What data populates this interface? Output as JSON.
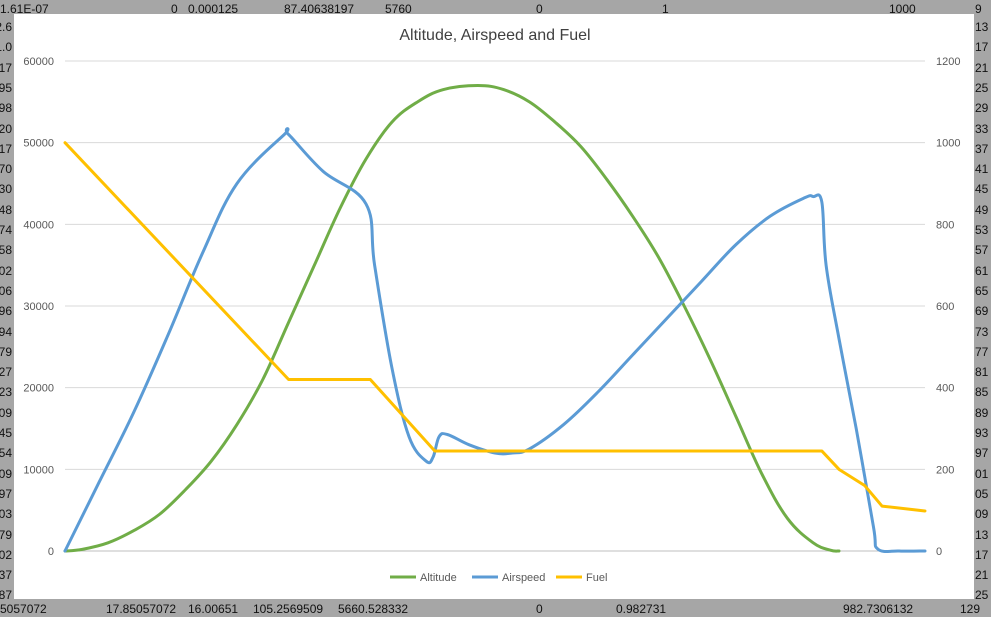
{
  "sheet": {
    "top_row": [
      "1.61E-07",
      "0",
      "0.000125",
      "87.40638197",
      "5760",
      "0",
      "1",
      "1000",
      "9"
    ],
    "bottom_row": [
      "5057072",
      "17.85057072",
      "16.00651",
      "105.2569509",
      "5660.528332",
      "0",
      "0.982731",
      "982.7306132",
      "129"
    ],
    "left_column_fragments": [
      "2.6",
      "1.0",
      "17",
      "95",
      "98",
      "20",
      "17",
      "70",
      "30",
      "48",
      "74",
      "58",
      "02",
      "06",
      "96",
      "94",
      "79",
      "27",
      "23",
      "09",
      "45",
      "54",
      "09",
      "97",
      "03",
      "79",
      "02",
      "37",
      "87"
    ],
    "right_column_fragments": [
      "13",
      "17",
      "21",
      "25",
      "29",
      "33",
      "37",
      "41",
      "45",
      "49",
      "53",
      "57",
      "61",
      "65",
      "69",
      "73",
      "77",
      "81",
      "85",
      "89",
      "93",
      "97",
      "01",
      "05",
      "09",
      "13",
      "17",
      "21",
      "25"
    ]
  },
  "chart_data": {
    "type": "line",
    "title": "Altitude, Airspeed and Fuel",
    "xlabel": "",
    "ylabel": "",
    "y_left": {
      "min": 0,
      "max": 60000,
      "ticks": [
        "0",
        "10000",
        "20000",
        "30000",
        "40000",
        "50000",
        "60000"
      ]
    },
    "y_right": {
      "min": 0,
      "max": 1200,
      "ticks": [
        "0",
        "200",
        "400",
        "600",
        "800",
        "1000",
        "1200"
      ]
    },
    "x": {
      "min": 0,
      "max": 100
    },
    "grid": true,
    "legend_position": "bottom",
    "series": [
      {
        "name": "Altitude",
        "axis": "left",
        "color": "#70ad47",
        "points": [
          [
            0,
            0
          ],
          [
            2,
            200
          ],
          [
            5,
            1000
          ],
          [
            8,
            2500
          ],
          [
            11,
            4500
          ],
          [
            14,
            7500
          ],
          [
            17,
            11000
          ],
          [
            20,
            15500
          ],
          [
            23,
            21000
          ],
          [
            26,
            28000
          ],
          [
            29,
            35000
          ],
          [
            32,
            42000
          ],
          [
            35,
            48000
          ],
          [
            38,
            52500
          ],
          [
            41,
            55000
          ],
          [
            44,
            56500
          ],
          [
            48,
            57000
          ],
          [
            51,
            56500
          ],
          [
            54,
            55000
          ],
          [
            57,
            52500
          ],
          [
            60,
            49500
          ],
          [
            63,
            45500
          ],
          [
            66,
            41000
          ],
          [
            69,
            36000
          ],
          [
            72,
            30000
          ],
          [
            75,
            23500
          ],
          [
            78,
            16500
          ],
          [
            81,
            9500
          ],
          [
            84,
            4000
          ],
          [
            87,
            1000
          ],
          [
            89,
            100
          ],
          [
            90,
            0
          ]
        ]
      },
      {
        "name": "Airspeed",
        "axis": "right",
        "color": "#5b9bd5",
        "points": [
          [
            0,
            0
          ],
          [
            4,
            170
          ],
          [
            8,
            340
          ],
          [
            12,
            530
          ],
          [
            16,
            730
          ],
          [
            20,
            900
          ],
          [
            25.5,
            1020
          ],
          [
            26,
            1020
          ],
          [
            30,
            930
          ],
          [
            35,
            850
          ],
          [
            36,
            700
          ],
          [
            38,
            450
          ],
          [
            40,
            280
          ],
          [
            42,
            220
          ],
          [
            42.8,
            230
          ],
          [
            43.5,
            280
          ],
          [
            44.5,
            285
          ],
          [
            47,
            260
          ],
          [
            50,
            240
          ],
          [
            52,
            240
          ],
          [
            54,
            250
          ],
          [
            58,
            310
          ],
          [
            62,
            390
          ],
          [
            66,
            480
          ],
          [
            70,
            570
          ],
          [
            74,
            660
          ],
          [
            78,
            750
          ],
          [
            82,
            820
          ],
          [
            86,
            865
          ],
          [
            87,
            868
          ],
          [
            88,
            855
          ],
          [
            88.5,
            700
          ],
          [
            90,
            520
          ],
          [
            92,
            300
          ],
          [
            94,
            60
          ],
          [
            94.5,
            5
          ],
          [
            97,
            0
          ],
          [
            100,
            0
          ]
        ]
      },
      {
        "name": "Fuel",
        "axis": "right",
        "color": "#ffc000",
        "points": [
          [
            0,
            1000
          ],
          [
            26,
            420
          ],
          [
            35.5,
            420
          ],
          [
            43,
            245
          ],
          [
            88,
            245
          ],
          [
            90,
            200
          ],
          [
            93,
            160
          ],
          [
            95,
            110
          ],
          [
            100,
            98
          ]
        ]
      }
    ]
  }
}
